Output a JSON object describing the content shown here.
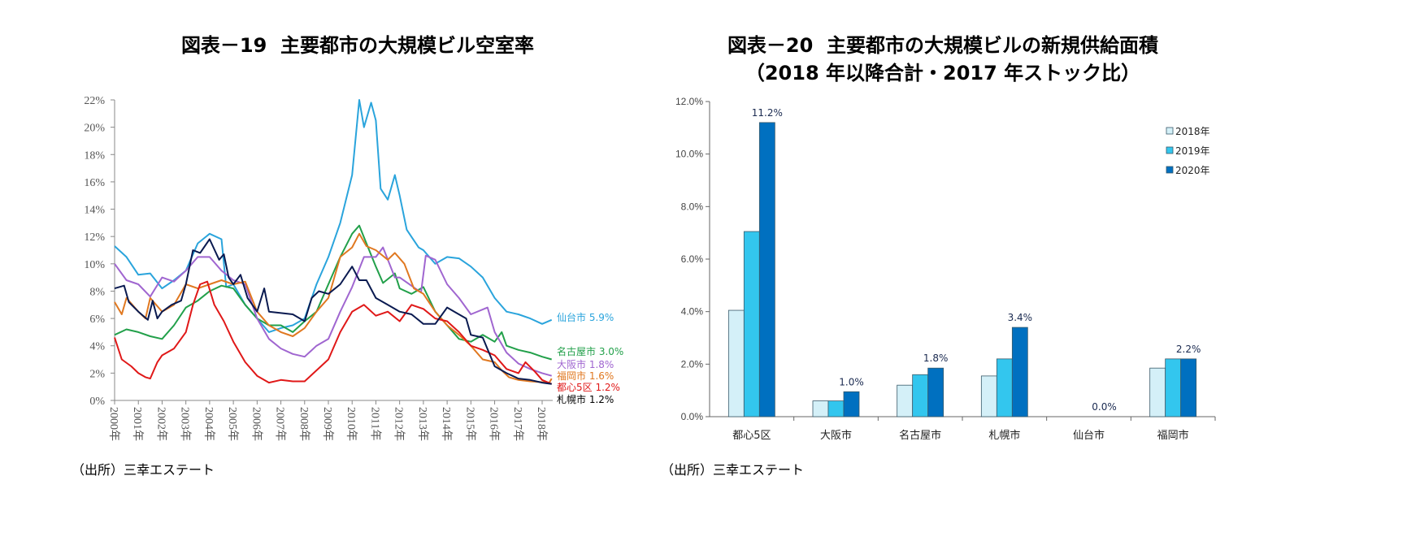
{
  "chart_data": [
    {
      "type": "line",
      "title": "図表－19  主要都市の大規模ビル空室率",
      "source": "（出所）三幸エステート",
      "ylim": [
        0,
        22
      ],
      "yticks": [
        "0%",
        "2%",
        "4%",
        "6%",
        "8%",
        "10%",
        "12%",
        "14%",
        "16%",
        "18%",
        "20%",
        "22%"
      ],
      "xticks": [
        "2000年",
        "2001年",
        "2002年",
        "2003年",
        "2004年",
        "2005年",
        "2006年",
        "2007年",
        "2008年",
        "2009年",
        "2010年",
        "2011年",
        "2012年",
        "2013年",
        "2014年",
        "2015年",
        "2016年",
        "2017年",
        "2018年"
      ],
      "grid": false,
      "series": [
        {
          "name": "仙台市",
          "end_label": "仙台市 5.9%",
          "color": "#2aa4dc",
          "x": [
            2000,
            2000.5,
            2001,
            2001.5,
            2002,
            2002.5,
            2003,
            2003.5,
            2004,
            2004.5,
            2004.7,
            2005,
            2005.5,
            2006,
            2006.5,
            2007,
            2007.5,
            2008,
            2008.5,
            2009,
            2009.5,
            2010,
            2010.3,
            2010.5,
            2010.8,
            2011,
            2011.2,
            2011.5,
            2011.8,
            2012,
            2012.3,
            2012.8,
            2013,
            2013.5,
            2014,
            2014.5,
            2015,
            2015.5,
            2016,
            2016.5,
            2017,
            2017.5,
            2018,
            2018.4
          ],
          "y": [
            11.3,
            10.5,
            9.2,
            9.3,
            8.2,
            8.8,
            9.5,
            11.5,
            12.2,
            11.8,
            8.3,
            8.5,
            7.0,
            6.0,
            5.0,
            5.3,
            5.5,
            6.0,
            8.5,
            10.5,
            13,
            16.5,
            22,
            20,
            21.8,
            20.5,
            15.5,
            14.7,
            16.5,
            15,
            12.5,
            11.2,
            11,
            10,
            10.5,
            10.4,
            9.8,
            9,
            7.5,
            6.5,
            6.3,
            6,
            5.6,
            5.9
          ]
        },
        {
          "name": "名古屋市",
          "end_label": "名古屋市 3.0%",
          "color": "#22a04a",
          "x": [
            2000,
            2000.5,
            2001,
            2001.5,
            2002,
            2002.5,
            2003,
            2003.5,
            2004,
            2004.5,
            2005,
            2005.5,
            2006,
            2006.5,
            2007,
            2007.5,
            2008,
            2008.5,
            2009,
            2009.5,
            2010,
            2010.3,
            2010.6,
            2011,
            2011.3,
            2011.8,
            2012,
            2012.5,
            2013,
            2013.5,
            2014,
            2014.5,
            2015,
            2015.5,
            2016,
            2016.3,
            2016.5,
            2017,
            2017.5,
            2018,
            2018.4
          ],
          "y": [
            4.8,
            5.2,
            5.0,
            4.7,
            4.5,
            5.5,
            6.8,
            7.3,
            8.0,
            8.4,
            8.2,
            7.0,
            6.0,
            5.5,
            5.5,
            5.0,
            5.8,
            6.5,
            8.5,
            10.5,
            12.2,
            12.8,
            11.5,
            9.8,
            8.6,
            9.3,
            8.2,
            7.8,
            8.3,
            6.5,
            5.5,
            4.5,
            4.3,
            4.8,
            4.3,
            5.0,
            4.0,
            3.7,
            3.5,
            3.2,
            3.0
          ]
        },
        {
          "name": "大阪市",
          "end_label": "大阪市 1.8%",
          "color": "#a066d0",
          "x": [
            2000,
            2000.5,
            2001,
            2001.5,
            2002,
            2002.5,
            2003,
            2003.5,
            2004,
            2004.5,
            2005,
            2005.5,
            2006,
            2006.5,
            2007,
            2007.5,
            2008,
            2008.5,
            2009,
            2009.5,
            2010,
            2010.5,
            2011,
            2011.3,
            2011.8,
            2012,
            2012.9,
            2013.1,
            2013.5,
            2014,
            2014.5,
            2015,
            2015.7,
            2016,
            2016.5,
            2017,
            2017.5,
            2018,
            2018.4
          ],
          "y": [
            10,
            8.8,
            8.5,
            7.6,
            9.0,
            8.7,
            9.5,
            10.5,
            10.5,
            9.5,
            8.8,
            8.5,
            6.0,
            4.5,
            3.8,
            3.4,
            3.2,
            4.0,
            4.5,
            6.5,
            8.3,
            10.5,
            10.5,
            11.2,
            9.0,
            9.0,
            7.9,
            10.6,
            10.3,
            8.5,
            7.5,
            6.3,
            6.8,
            5.0,
            3.5,
            2.7,
            2.3,
            2.0,
            1.8
          ]
        },
        {
          "name": "福岡市",
          "end_label": "福岡市 1.6%",
          "color": "#e07820",
          "x": [
            2000,
            2000.3,
            2000.5,
            2001,
            2001.3,
            2001.5,
            2002,
            2002.5,
            2003,
            2003.5,
            2004,
            2004.5,
            2005,
            2005.5,
            2006,
            2006.5,
            2007,
            2007.5,
            2008,
            2008.5,
            2009,
            2009.5,
            2010,
            2010.3,
            2010.6,
            2011,
            2011.5,
            2011.8,
            2012.2,
            2012.6,
            2013,
            2013.5,
            2014,
            2014.5,
            2015,
            2015.5,
            2016,
            2016.3,
            2016.6,
            2017,
            2017.5,
            2018.3,
            2018.4
          ],
          "y": [
            7.2,
            6.3,
            7.5,
            6.5,
            6.0,
            7.5,
            6.5,
            7.0,
            8.5,
            8.2,
            8.5,
            8.8,
            8.5,
            8.7,
            6.5,
            5.5,
            5.0,
            4.7,
            5.3,
            6.5,
            7.5,
            10.5,
            11.2,
            12.2,
            11.3,
            11,
            10.3,
            10.8,
            10.0,
            8.2,
            7.8,
            6.5,
            5.5,
            4.8,
            4.0,
            3.0,
            2.8,
            2.2,
            1.7,
            1.5,
            1.4,
            1.3,
            1.6
          ]
        },
        {
          "name": "都心5区",
          "end_label": "都心5区 1.2%",
          "color": "#e01818",
          "x": [
            2000,
            2000.3,
            2000.7,
            2001,
            2001.3,
            2001.5,
            2001.8,
            2002,
            2002.5,
            2003,
            2003.3,
            2003.6,
            2003.9,
            2004.2,
            2004.6,
            2005,
            2005.5,
            2006,
            2006.5,
            2007,
            2007.5,
            2008,
            2008.5,
            2009,
            2009.5,
            2010,
            2010.5,
            2011,
            2011.5,
            2012,
            2012.5,
            2013,
            2013.5,
            2014,
            2014.5,
            2015,
            2015.5,
            2016,
            2016.5,
            2017,
            2017.3,
            2017.7,
            2018,
            2018.4
          ],
          "y": [
            4.6,
            3.0,
            2.5,
            2.0,
            1.7,
            1.6,
            2.8,
            3.3,
            3.8,
            5.0,
            7.0,
            8.5,
            8.7,
            7.0,
            5.8,
            4.3,
            2.8,
            1.8,
            1.3,
            1.5,
            1.4,
            1.4,
            2.2,
            3.0,
            5.0,
            6.5,
            7.0,
            6.2,
            6.5,
            5.8,
            7.0,
            6.7,
            6.0,
            5.8,
            5.0,
            4.0,
            3.7,
            3.3,
            2.3,
            2.0,
            2.8,
            2.1,
            1.5,
            1.2
          ]
        },
        {
          "name": "札幌市",
          "end_label": "札幌市 1.2%",
          "color": "#0a1a50",
          "x": [
            2000,
            2000.4,
            2000.6,
            2001,
            2001.4,
            2001.6,
            2001.8,
            2002,
            2002.4,
            2002.8,
            2003,
            2003.3,
            2003.6,
            2004,
            2004.4,
            2004.6,
            2004.8,
            2005,
            2005.3,
            2005.6,
            2006,
            2006.3,
            2006.5,
            2007,
            2007.5,
            2008,
            2008.3,
            2008.6,
            2009,
            2009.5,
            2010,
            2010.3,
            2010.6,
            2011,
            2011.5,
            2012,
            2012.5,
            2013,
            2013.5,
            2014,
            2014.3,
            2014.8,
            2015,
            2015.5,
            2016,
            2016.5,
            2017,
            2017.5,
            2018,
            2018.4
          ],
          "y": [
            8.2,
            8.4,
            7.2,
            6.5,
            5.9,
            7.3,
            6.0,
            6.5,
            7.0,
            7.3,
            8.5,
            11.0,
            10.8,
            11.8,
            10.3,
            10.7,
            9.0,
            8.5,
            9.2,
            7.5,
            6.5,
            8.2,
            6.5,
            6.4,
            6.3,
            5.8,
            7.5,
            8.0,
            7.8,
            8.5,
            9.8,
            8.8,
            8.8,
            7.5,
            7.0,
            6.5,
            6.3,
            5.6,
            5.6,
            6.8,
            6.5,
            6.0,
            4.8,
            4.6,
            2.5,
            2.0,
            1.6,
            1.5,
            1.3,
            1.2
          ]
        }
      ]
    },
    {
      "type": "bar",
      "title": "図表－20  主要都市の大規模ビルの新規供給面積",
      "subtitle": "（2018 年以降合計・2017 年ストック比）",
      "source": "（出所）三幸エステート",
      "ylim": [
        0,
        12
      ],
      "yticks": [
        "0.0%",
        "2.0%",
        "4.0%",
        "6.0%",
        "8.0%",
        "10.0%",
        "12.0%"
      ],
      "categories": [
        "都心5区",
        "大阪市",
        "名古屋市",
        "札幌市",
        "仙台市",
        "福岡市"
      ],
      "legend_position": "top-right",
      "grid": false,
      "series": [
        {
          "name": "2018年",
          "color": "#d4f0f8",
          "values": [
            4.05,
            0.6,
            1.2,
            1.55,
            0,
            1.85
          ]
        },
        {
          "name": "2019年",
          "color": "#33c6ee",
          "values": [
            7.05,
            0.6,
            1.6,
            2.2,
            0,
            2.2
          ]
        },
        {
          "name": "2020年",
          "color": "#0070c0",
          "values": [
            11.2,
            0.95,
            1.85,
            3.4,
            0,
            2.2
          ]
        }
      ],
      "data_labels": [
        "11.2%",
        "1.0%",
        "1.8%",
        "3.4%",
        "0.0%",
        "2.2%"
      ]
    }
  ]
}
